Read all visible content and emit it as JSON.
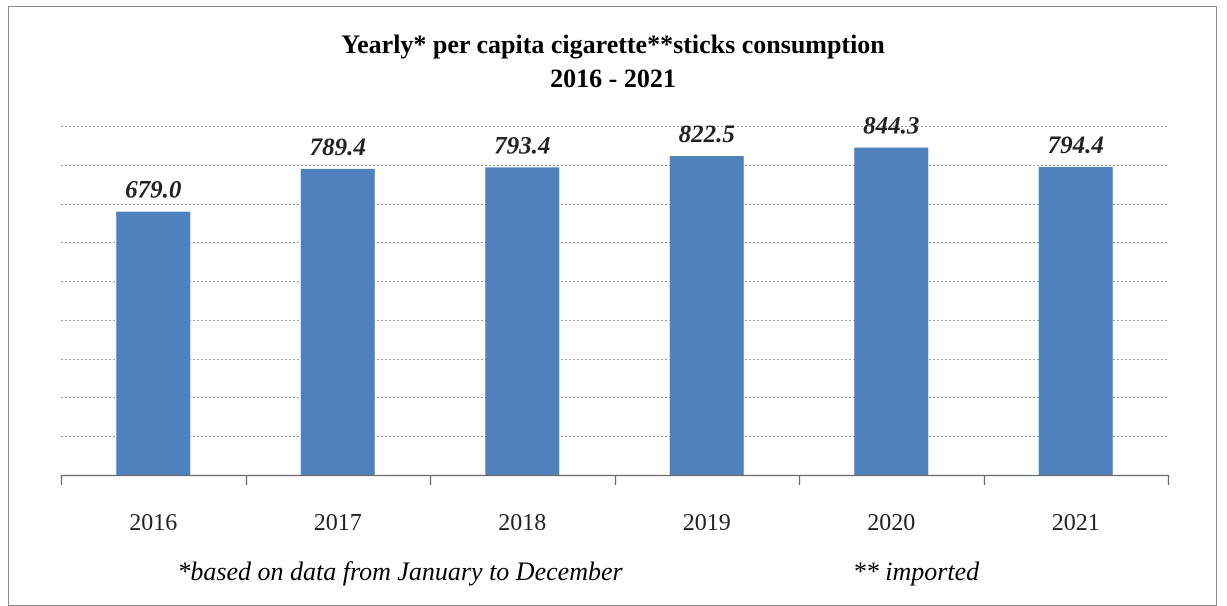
{
  "chart_data": {
    "type": "bar",
    "title_lines": [
      "Yearly* per capita cigarette**sticks consumption",
      "2016 - 2021"
    ],
    "categories": [
      "2016",
      "2017",
      "2018",
      "2019",
      "2020",
      "2021"
    ],
    "values": [
      679.0,
      789.4,
      793.4,
      822.5,
      844.3,
      794.4
    ],
    "value_labels": [
      "679.0",
      "789.4",
      "793.4",
      "822.5",
      "844.3",
      "794.4"
    ],
    "ylim": [
      0,
      900
    ],
    "grid": true,
    "legend": "none",
    "bar_color": "#4f81bd"
  },
  "footnotes": {
    "left": "*based on data from January to December",
    "right": "** imported"
  }
}
